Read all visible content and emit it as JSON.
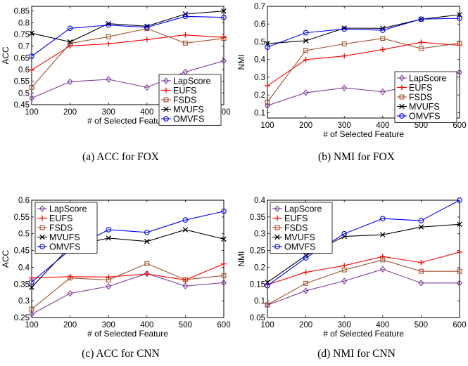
{
  "figure": {
    "legend_entries": [
      {
        "name": "LapScore",
        "color": "#7f3f98",
        "marker": "diamond"
      },
      {
        "name": "EUFS",
        "color": "#ff0000",
        "marker": "plus"
      },
      {
        "name": "FSDS",
        "color": "#a0522d",
        "marker": "square"
      },
      {
        "name": "MVUFS",
        "color": "#000000",
        "marker": "x"
      },
      {
        "name": "OMVFS",
        "color": "#0000ff",
        "marker": "circle"
      }
    ]
  },
  "chart_data": [
    {
      "type": "line",
      "caption": "(a) ACC for FOX",
      "xlabel": "# of Selected Feature",
      "ylabel": "ACC",
      "x": [
        100,
        200,
        300,
        400,
        500,
        600
      ],
      "xlim": [
        100,
        600
      ],
      "ylim": [
        0.45,
        0.87
      ],
      "yticks": [
        0.45,
        0.5,
        0.55,
        0.6,
        0.65,
        0.7,
        0.75,
        0.8,
        0.85
      ],
      "ytick_labels": [
        "0.45",
        "0.5",
        "0.55",
        "0.6",
        "0.65",
        "0.7",
        "0.75",
        "0.8",
        "0.85"
      ],
      "legend_position": "bottom-right",
      "series": [
        {
          "name": "LapScore",
          "values": [
            0.478,
            0.548,
            0.558,
            0.524,
            0.59,
            0.637
          ]
        },
        {
          "name": "EUFS",
          "values": [
            0.598,
            0.701,
            0.71,
            0.728,
            0.748,
            0.737
          ]
        },
        {
          "name": "FSDS",
          "values": [
            0.524,
            0.712,
            0.74,
            0.775,
            0.713,
            0.733
          ]
        },
        {
          "name": "MVUFS",
          "values": [
            0.755,
            0.718,
            0.796,
            0.785,
            0.837,
            0.85
          ]
        },
        {
          "name": "OMVFS",
          "values": [
            0.657,
            0.776,
            0.79,
            0.78,
            0.827,
            0.823
          ]
        }
      ]
    },
    {
      "type": "line",
      "caption": "(b) NMI for FOX",
      "xlabel": "# of Selected Feature",
      "ylabel": "NMI",
      "x": [
        100,
        200,
        300,
        400,
        500,
        600
      ],
      "xlim": [
        100,
        600
      ],
      "ylim": [
        0.07,
        0.7
      ],
      "yticks": [
        0.1,
        0.2,
        0.3,
        0.4,
        0.5,
        0.6,
        0.7
      ],
      "ytick_labels": [
        "0.1",
        "0.2",
        "0.3",
        "0.4",
        "0.5",
        "0.6",
        "0.7"
      ],
      "legend_position": "bottom-right",
      "series": [
        {
          "name": "LapScore",
          "values": [
            0.14,
            0.213,
            0.24,
            0.218,
            0.262,
            0.328
          ]
        },
        {
          "name": "EUFS",
          "values": [
            0.252,
            0.399,
            0.42,
            0.456,
            0.497,
            0.48
          ]
        },
        {
          "name": "FSDS",
          "values": [
            0.16,
            0.451,
            0.488,
            0.519,
            0.462,
            0.492
          ]
        },
        {
          "name": "MVUFS",
          "values": [
            0.49,
            0.506,
            0.577,
            0.576,
            0.627,
            0.653
          ]
        },
        {
          "name": "OMVFS",
          "values": [
            0.47,
            0.551,
            0.572,
            0.565,
            0.628,
            0.632
          ]
        }
      ]
    },
    {
      "type": "line",
      "caption": "(c) ACC for CNN",
      "xlabel": "# of Selected Feature",
      "ylabel": "ACC",
      "x": [
        100,
        200,
        300,
        400,
        500,
        600
      ],
      "xlim": [
        100,
        600
      ],
      "ylim": [
        0.25,
        0.6
      ],
      "yticks": [
        0.25,
        0.3,
        0.35,
        0.4,
        0.45,
        0.5,
        0.55,
        0.6
      ],
      "ytick_labels": [
        "0.25",
        "0.3",
        "0.35",
        "0.4",
        "0.45",
        "0.5",
        "0.55",
        "0.6"
      ],
      "legend_position": "top-left",
      "series": [
        {
          "name": "LapScore",
          "values": [
            0.26,
            0.322,
            0.343,
            0.381,
            0.344,
            0.354
          ]
        },
        {
          "name": "EUFS",
          "values": [
            0.368,
            0.372,
            0.371,
            0.38,
            0.362,
            0.41
          ]
        },
        {
          "name": "FSDS",
          "values": [
            0.275,
            0.368,
            0.362,
            0.411,
            0.363,
            0.375
          ]
        },
        {
          "name": "MVUFS",
          "values": [
            0.34,
            0.462,
            0.487,
            0.477,
            0.512,
            0.484
          ]
        },
        {
          "name": "OMVFS",
          "values": [
            0.356,
            0.452,
            0.512,
            0.504,
            0.541,
            0.567
          ]
        }
      ]
    },
    {
      "type": "line",
      "caption": "(d) NMI for CNN",
      "xlabel": "# of Selected Feature",
      "ylabel": "NMI",
      "x": [
        100,
        200,
        300,
        400,
        500,
        600
      ],
      "xlim": [
        100,
        600
      ],
      "ylim": [
        0.05,
        0.4
      ],
      "yticks": [
        0.05,
        0.1,
        0.15,
        0.2,
        0.25,
        0.3,
        0.35,
        0.4
      ],
      "ytick_labels": [
        "0.05",
        "0.1",
        "0.15",
        "0.2",
        "0.25",
        "0.3",
        "0.35",
        "0.4"
      ],
      "legend_position": "top-left",
      "series": [
        {
          "name": "LapScore",
          "values": [
            0.087,
            0.13,
            0.159,
            0.194,
            0.153,
            0.153
          ]
        },
        {
          "name": "EUFS",
          "values": [
            0.148,
            0.185,
            0.205,
            0.232,
            0.214,
            0.245
          ]
        },
        {
          "name": "FSDS",
          "values": [
            0.088,
            0.152,
            0.192,
            0.222,
            0.188,
            0.188
          ]
        },
        {
          "name": "MVUFS",
          "values": [
            0.155,
            0.235,
            0.292,
            0.297,
            0.32,
            0.328
          ]
        },
        {
          "name": "OMVFS",
          "values": [
            0.145,
            0.228,
            0.3,
            0.345,
            0.339,
            0.4
          ]
        }
      ]
    }
  ]
}
